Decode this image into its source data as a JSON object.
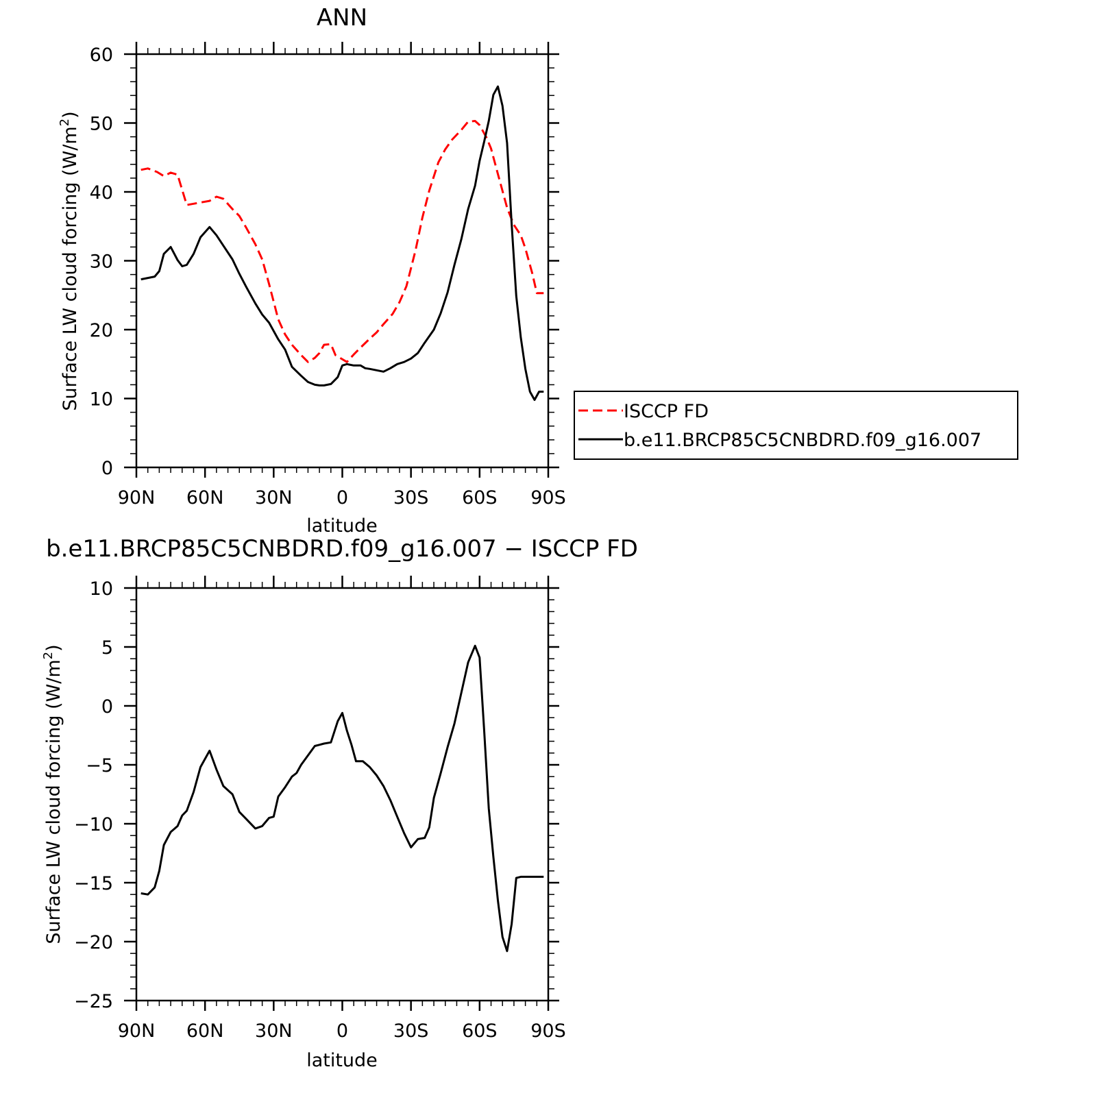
{
  "chart_data": [
    {
      "type": "line",
      "title": "ANN",
      "xlabel": "latitude",
      "ylabel": "Surface LW cloud forcing (W/m²)",
      "ylabel_main": "Surface LW cloud forcing (W/m",
      "ylabel_sup": "2",
      "ylabel_tail": ")",
      "xlim": [
        90,
        -90
      ],
      "ylim": [
        0,
        60
      ],
      "yticks": [
        "0",
        "10",
        "20",
        "30",
        "40",
        "50",
        "60"
      ],
      "xticks": [
        "90N",
        "60N",
        "30N",
        "0",
        "30S",
        "60S",
        "90S"
      ],
      "legend_position": "right",
      "series": [
        {
          "name": "ISCCP FD",
          "color": "#ff0000",
          "dash": "dashed",
          "x": [
            88,
            85,
            81,
            78,
            75,
            72,
            68,
            63,
            58,
            55,
            52,
            48,
            45,
            42,
            38,
            35,
            32,
            28,
            25,
            22,
            18,
            15,
            12,
            10,
            8,
            5,
            3,
            1,
            -2,
            -5,
            -8,
            -12,
            -15,
            -18,
            -22,
            -25,
            -28,
            -32,
            -35,
            -38,
            -42,
            -45,
            -48,
            -52,
            -55,
            -58,
            -60,
            -63,
            -65,
            -68,
            -72,
            -75,
            -78,
            -80,
            -83,
            -85,
            -88
          ],
          "y": [
            43.2,
            43.4,
            42.9,
            42.3,
            42.8,
            42.5,
            38.1,
            38.4,
            38.7,
            39.3,
            39.0,
            37.5,
            36.5,
            34.8,
            32.4,
            30.2,
            26.6,
            21.5,
            19.3,
            17.8,
            16.3,
            15.3,
            15.9,
            16.6,
            17.8,
            17.9,
            16.3,
            15.9,
            15.3,
            16.4,
            17.4,
            18.7,
            19.6,
            20.8,
            22.3,
            24.0,
            26.3,
            31.5,
            36.3,
            40.2,
            44.3,
            46.2,
            47.6,
            49.0,
            50.2,
            50.3,
            49.7,
            47.9,
            46.3,
            42.6,
            37.7,
            35.2,
            33.7,
            31.8,
            28.2,
            25.3,
            25.3
          ]
        },
        {
          "name": "b.e11.BRCP85C5CNBDRD.f09_g16.007",
          "color": "#000000",
          "dash": "solid",
          "x": [
            88,
            85,
            82,
            80,
            78,
            75,
            72,
            70,
            68,
            65,
            62,
            58,
            55,
            52,
            48,
            45,
            42,
            38,
            35,
            32,
            28,
            25,
            22,
            18,
            15,
            12,
            10,
            8,
            5,
            2,
            0,
            -2,
            -5,
            -8,
            -10,
            -12,
            -15,
            -18,
            -21,
            -24,
            -27,
            -30,
            -33,
            -36,
            -40,
            -43,
            -46,
            -49,
            -52,
            -55,
            -58,
            -60,
            -62,
            -64,
            -66,
            -68,
            -70,
            -72,
            -74,
            -76,
            -78,
            -80,
            -82,
            -84,
            -86,
            -88
          ],
          "y": [
            27.3,
            27.5,
            27.7,
            28.5,
            31.0,
            32.0,
            30.1,
            29.2,
            29.4,
            31.0,
            33.4,
            34.9,
            33.7,
            32.2,
            30.2,
            28.1,
            26.2,
            23.8,
            22.2,
            21.0,
            18.6,
            17.1,
            14.6,
            13.3,
            12.4,
            12.0,
            11.9,
            11.9,
            12.1,
            13.1,
            14.8,
            15.0,
            14.8,
            14.8,
            14.4,
            14.3,
            14.1,
            13.9,
            14.4,
            15.0,
            15.3,
            15.8,
            16.6,
            18.1,
            20.0,
            22.4,
            25.4,
            29.4,
            33.1,
            37.5,
            40.9,
            44.5,
            47.3,
            50.3,
            54.1,
            55.3,
            52.5,
            47.1,
            35.3,
            24.9,
            18.9,
            14.3,
            11.0,
            9.8,
            11.0,
            11.0
          ]
        }
      ]
    },
    {
      "type": "line",
      "title": "b.e11.BRCP85C5CNBDRD.f09_g16.007 − ISCCP FD",
      "xlabel": "latitude",
      "ylabel": "Surface LW cloud forcing (W/m²)",
      "ylabel_main": "Surface LW cloud forcing (W/m",
      "ylabel_sup": "2",
      "ylabel_tail": ")",
      "xlim": [
        90,
        -90
      ],
      "ylim": [
        -25,
        10
      ],
      "yticks": [
        "−25",
        "−20",
        "−15",
        "−10",
        "−5",
        "0",
        "5",
        "10"
      ],
      "xticks": [
        "90N",
        "60N",
        "30N",
        "0",
        "30S",
        "60S",
        "90S"
      ],
      "series": [
        {
          "color": "#000000",
          "dash": "solid",
          "x": [
            88,
            85,
            82,
            80,
            78,
            75,
            72,
            70,
            68,
            65,
            62,
            58,
            55,
            52,
            48,
            45,
            42,
            38,
            35,
            32,
            30,
            28,
            25,
            22,
            20,
            18,
            15,
            12,
            10,
            8,
            5,
            2,
            0,
            -2,
            -4,
            -6,
            -9,
            -12,
            -15,
            -18,
            -21,
            -24,
            -27,
            -30,
            -33,
            -36,
            -38,
            -40,
            -43,
            -46,
            -49,
            -52,
            -55,
            -58,
            -60,
            -62,
            -64,
            -66,
            -68,
            -70,
            -72,
            -74,
            -76,
            -78,
            -80,
            -82,
            -84,
            -86,
            -88
          ],
          "y": [
            -15.9,
            -16.0,
            -15.4,
            -14.0,
            -11.8,
            -10.7,
            -10.2,
            -9.3,
            -8.9,
            -7.3,
            -5.2,
            -3.8,
            -5.4,
            -6.8,
            -7.5,
            -9.0,
            -9.6,
            -10.4,
            -10.2,
            -9.5,
            -9.4,
            -7.7,
            -6.9,
            -6.0,
            -5.7,
            -5.0,
            -4.2,
            -3.4,
            -3.3,
            -3.2,
            -3.1,
            -1.3,
            -0.6,
            -2.1,
            -3.3,
            -4.7,
            -4.7,
            -5.2,
            -5.9,
            -6.8,
            -8.0,
            -9.4,
            -10.8,
            -12.0,
            -11.3,
            -11.2,
            -10.3,
            -7.8,
            -5.7,
            -3.5,
            -1.5,
            1.1,
            3.7,
            5.1,
            4.1,
            -2.1,
            -8.7,
            -12.8,
            -16.5,
            -19.6,
            -20.8,
            -18.5,
            -14.6,
            -14.5,
            -14.5,
            -14.5,
            -14.5,
            -14.5,
            -14.5
          ]
        }
      ]
    }
  ]
}
